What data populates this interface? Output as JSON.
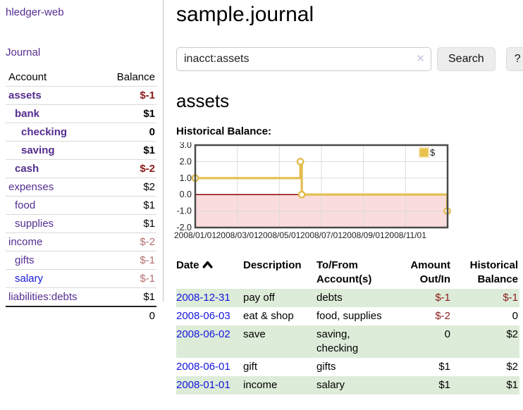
{
  "app": {
    "title": "hledger-web"
  },
  "sidebar": {
    "journal_link": "Journal",
    "accounts_table": {
      "headers": [
        "Account",
        "Balance"
      ],
      "rows": [
        {
          "account": "assets",
          "balance": "$-1",
          "level": 1,
          "bold": true,
          "link_color": "purple",
          "balance_style": "negative"
        },
        {
          "account": "bank",
          "balance": "$1",
          "level": 2,
          "bold": true,
          "link_color": "purple",
          "balance_style": "normal"
        },
        {
          "account": "checking",
          "balance": "0",
          "level": 3,
          "bold": true,
          "link_color": "purple",
          "balance_style": "normal"
        },
        {
          "account": "saving",
          "balance": "$1",
          "level": 3,
          "bold": true,
          "link_color": "purple",
          "balance_style": "normal"
        },
        {
          "account": "cash",
          "balance": "$-2",
          "level": 2,
          "bold": true,
          "link_color": "purple",
          "balance_style": "negative"
        },
        {
          "account": "expenses",
          "balance": "$2",
          "level": 1,
          "bold": false,
          "link_color": "purple",
          "balance_style": "normal"
        },
        {
          "account": "food",
          "balance": "$1",
          "level": 2,
          "bold": false,
          "link_color": "purple",
          "balance_style": "normal"
        },
        {
          "account": "supplies",
          "balance": "$1",
          "level": 2,
          "bold": false,
          "link_color": "purple",
          "balance_style": "normal"
        },
        {
          "account": "income",
          "balance": "$-2",
          "level": 1,
          "bold": false,
          "link_color": "purple",
          "balance_style": "negative-muted"
        },
        {
          "account": "gifts",
          "balance": "$-1",
          "level": 2,
          "bold": false,
          "link_color": "purple",
          "balance_style": "negative-muted"
        },
        {
          "account": "salary",
          "balance": "$-1",
          "level": 2,
          "bold": false,
          "link_color": "blue",
          "balance_style": "negative-muted"
        },
        {
          "account": "liabilities:debts",
          "balance": "$1",
          "level": 1,
          "bold": false,
          "link_color": "purple",
          "balance_style": "normal"
        }
      ],
      "total": "0"
    }
  },
  "main": {
    "title": "sample.journal",
    "search": {
      "value": "inacct:assets",
      "clear_icon": "✕",
      "button_label": "Search",
      "help_label": "?"
    },
    "account_heading": "assets",
    "chart_label": "Historical Balance:",
    "register_table": {
      "headers": {
        "date": "Date",
        "description": "Description",
        "account": "To/From Account(s)",
        "amount": "Amount Out/In",
        "balance": "Historical Balance"
      },
      "sort": "date-ascending",
      "rows": [
        {
          "date": "2008-12-31",
          "description": "pay off",
          "accounts": "debts",
          "amount": "$-1",
          "amount_style": "negative",
          "balance": "$-1",
          "balance_style": "negative",
          "shaded": true
        },
        {
          "date": "2008-06-03",
          "description": "eat & shop",
          "accounts": "food, supplies",
          "amount": "$-2",
          "amount_style": "negative",
          "balance": "0",
          "balance_style": "normal",
          "shaded": false
        },
        {
          "date": "2008-06-02",
          "description": "save",
          "accounts": "saving, checking",
          "amount": "0",
          "amount_style": "normal",
          "balance": "$2",
          "balance_style": "normal",
          "shaded": true
        },
        {
          "date": "2008-06-01",
          "description": "gift",
          "accounts": "gifts",
          "amount": "$1",
          "amount_style": "normal",
          "balance": "$2",
          "balance_style": "normal",
          "shaded": false
        },
        {
          "date": "2008-01-01",
          "description": "income",
          "accounts": "salary",
          "amount": "$1",
          "amount_style": "normal",
          "balance": "$1",
          "balance_style": "normal",
          "shaded": true
        }
      ]
    }
  },
  "chart_data": {
    "type": "line",
    "title": "Historical Balance",
    "series": [
      {
        "name": "$",
        "step": true,
        "color": "#e3bd4f",
        "points": [
          {
            "date": "2008-01-01",
            "value": 1.0
          },
          {
            "date": "2008-06-01",
            "value": 2.0
          },
          {
            "date": "2008-06-03",
            "value": 0.0
          },
          {
            "date": "2008-12-31",
            "value": -1.0
          }
        ]
      }
    ],
    "x_ticks": [
      "2008/01/01",
      "2008/03/01",
      "2008/05/01",
      "2008/07/01",
      "2008/09/01",
      "2008/11/01"
    ],
    "y_ticks": [
      "3.0",
      "2.0",
      "1.0",
      "0.0",
      "-1.0",
      "-2.0"
    ],
    "ylim": [
      -2.0,
      3.0
    ],
    "x_range": [
      "2008-01-01",
      "2008-12-31"
    ],
    "grid": true,
    "legend": {
      "label": "$",
      "position": "top-right",
      "swatch_color": "#e8c14d"
    },
    "negative_region_color": "#fbdcdc",
    "zero_line_color": "#8b0000"
  },
  "colors": {
    "link_purple": "#552d90",
    "link_blue": "#1515dd",
    "negative": "#8b1a1a",
    "negative_muted": "#b36f6f",
    "row_shaded": "#ddecd9",
    "chart_line": "#e3bd4f",
    "chart_border": "#4a4a4a",
    "gridline": "#dcdcdc"
  }
}
